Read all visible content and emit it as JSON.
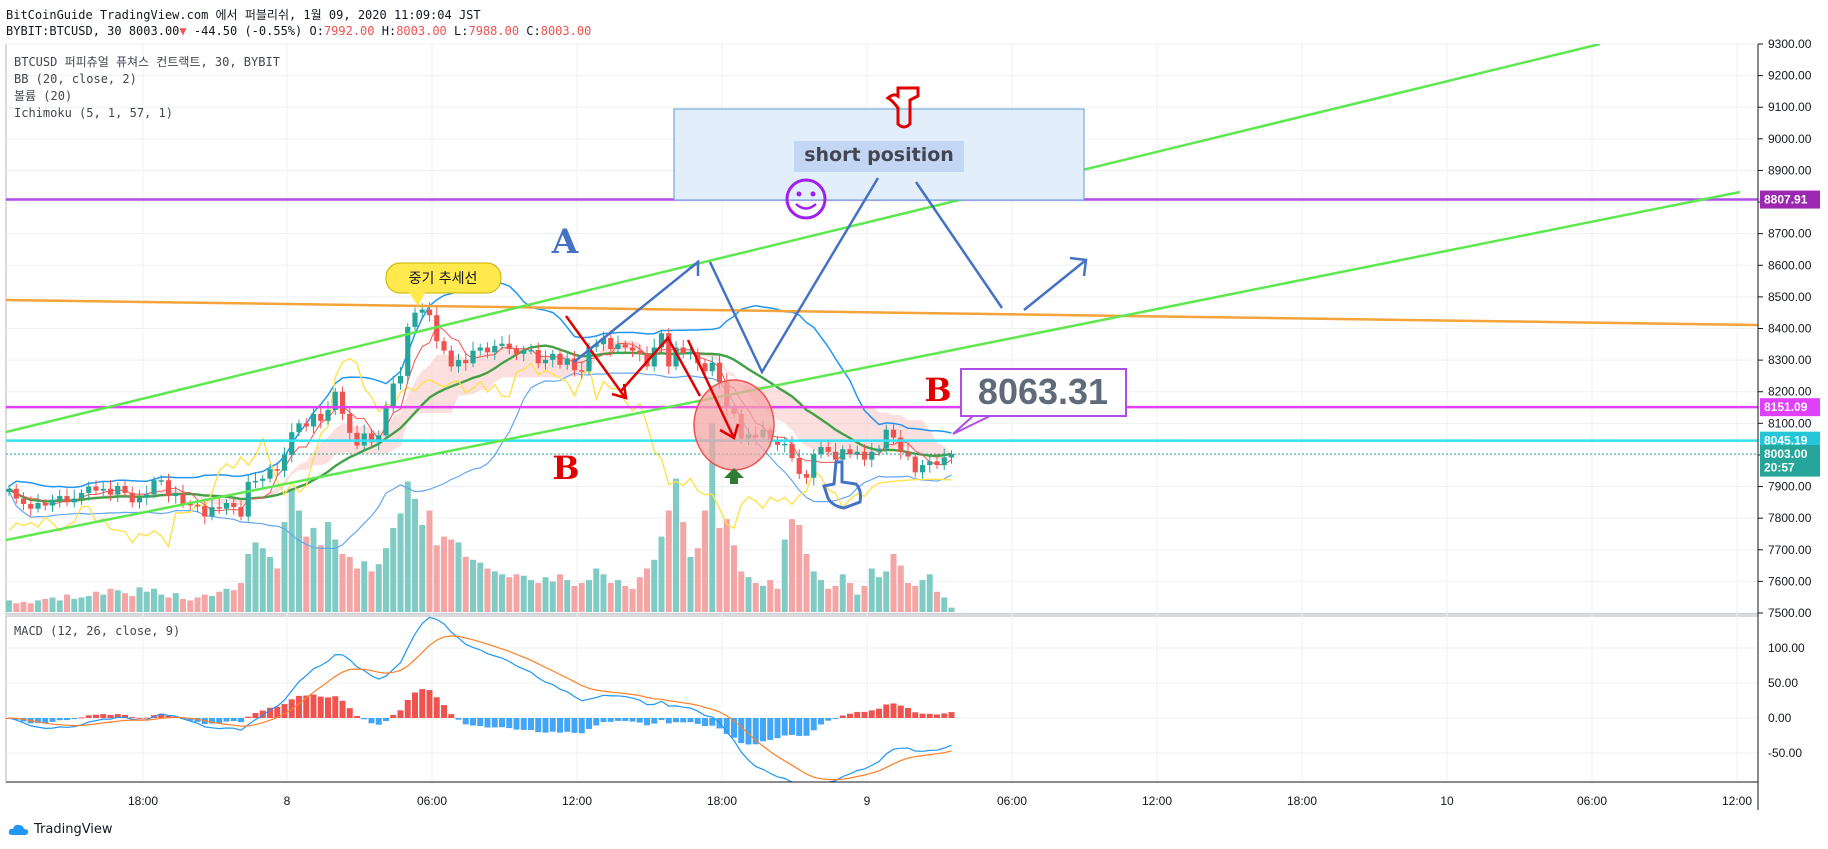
{
  "header": {
    "publish_line": "BitCoinGuide TradingView.com 에서 퍼블리쉬, 1월 09, 2020 11:09:04 JST",
    "symbol": "BYBIT:BTCUSD, 30",
    "last": "8003.00",
    "change": "-44.50 (-0.55%)",
    "o_label": "O:",
    "o_value": "7992.00",
    "h_label": "H:",
    "h_value": "8003.00",
    "l_label": "L:",
    "l_value": "7988.00",
    "c_label": "C:",
    "c_value": "8003.00"
  },
  "indicators": [
    "BTCUSD 퍼피츄얼 퓨쳐스 컨트랙트, 30, BYBIT",
    "BB (20, close, 2)",
    "볼륨 (20)",
    "Ichimoku (5, 1, 57, 1)"
  ],
  "macd_label": "MACD (12, 26, close, 9)",
  "annotations": {
    "box_text": "short position",
    "callout_text": "8063.31",
    "label_A": "A",
    "label_B_left": "B",
    "label_B_right": "B",
    "bubble_text": "중기 추세선",
    "colors": {
      "green_channel": "#5ee84f",
      "orange_line": "#f5a33a",
      "purple_line": "#b04ce8",
      "magenta_line": "#e040fb",
      "cyan_line": "#34e0f0"
    }
  },
  "price_labels": [
    {
      "text": "8807.91",
      "value": 8807.91,
      "color": "#9c27b0"
    },
    {
      "text": "8151.09",
      "value": 8151.09,
      "color": "#e040fb"
    },
    {
      "text": "8045.19",
      "value": 8045.19,
      "color": "#26c6da"
    },
    {
      "text": "8003.00",
      "value": 8003.0,
      "color": "#26a69a"
    },
    {
      "text": "20:57",
      "value": 7960,
      "color": "#26a69a"
    }
  ],
  "footer": {
    "brand": "TradingView"
  },
  "chart_data": [
    {
      "type": "candlestick",
      "title": "",
      "price_axis": {
        "ticks": [
          "9300.00",
          "9200.00",
          "9100.00",
          "9000.00",
          "8900.00",
          "8800.00",
          "8700.00",
          "8600.00",
          "8500.00",
          "8400.00",
          "8300.00",
          "8200.00",
          "8100.00",
          "8000.00",
          "7900.00",
          "7800.00",
          "7700.00",
          "7600.00",
          "7500.00"
        ],
        "ylim": [
          7500,
          9300
        ]
      },
      "time_axis": {
        "ticks": [
          "18:00",
          "8",
          "06:00",
          "12:00",
          "18:00",
          "9",
          "06:00",
          "12:00",
          "18:00",
          "10",
          "06:00",
          "12:00"
        ]
      },
      "close": [
        7893,
        7862,
        7845,
        7830,
        7848,
        7840,
        7858,
        7870,
        7850,
        7862,
        7880,
        7900,
        7887,
        7893,
        7875,
        7902,
        7880,
        7850,
        7865,
        7875,
        7920,
        7920,
        7870,
        7878,
        7845,
        7842,
        7838,
        7805,
        7835,
        7830,
        7848,
        7835,
        7805,
        7915,
        7918,
        7925,
        7955,
        7950,
        8000,
        8072,
        8100,
        8090,
        8130,
        8108,
        8142,
        8200,
        8130,
        8070,
        8030,
        8068,
        8040,
        8062,
        8150,
        8226,
        8250,
        8405,
        8450,
        8460,
        8442,
        8360,
        8330,
        8280,
        8300,
        8290,
        8330,
        8340,
        8325,
        8345,
        8352,
        8335,
        8320,
        8330,
        8332,
        8290,
        8301,
        8320,
        8285,
        8305,
        8268,
        8265,
        8342,
        8350,
        8370,
        8335,
        8350,
        8340,
        8330,
        8320,
        8280,
        8340,
        8385,
        8280,
        8340,
        8322,
        8325,
        8290,
        8265,
        8292,
        8230,
        8150,
        8130,
        8052,
        8065,
        8055,
        8080,
        8043,
        8032,
        8035,
        7990,
        7940,
        7928,
        8002,
        8025,
        8010,
        7985,
        8018,
        8002,
        8010,
        7985,
        8010,
        8020,
        8080,
        8055,
        8010,
        7995,
        7945,
        7968,
        7980,
        7968,
        7992,
        8003
      ],
      "volume": [
        8,
        6,
        7,
        6,
        8,
        9,
        10,
        8,
        12,
        9,
        10,
        11,
        14,
        12,
        16,
        15,
        13,
        11,
        17,
        14,
        16,
        12,
        10,
        13,
        9,
        8,
        10,
        12,
        11,
        14,
        16,
        15,
        20,
        40,
        48,
        44,
        38,
        30,
        62,
        85,
        70,
        52,
        58,
        46,
        62,
        50,
        40,
        38,
        30,
        35,
        28,
        33,
        44,
        58,
        68,
        90,
        78,
        60,
        70,
        46,
        52,
        50,
        48,
        38,
        36,
        34,
        30,
        28,
        26,
        24,
        26,
        25,
        22,
        20,
        24,
        21,
        26,
        22,
        18,
        20,
        22,
        30,
        26,
        20,
        22,
        18,
        16,
        24,
        30,
        36,
        52,
        70,
        92,
        62,
        38,
        44,
        70,
        130,
        58,
        64,
        46,
        28,
        24,
        20,
        18,
        22,
        16,
        50,
        64,
        60,
        40,
        28,
        22,
        16,
        18,
        26,
        20,
        12,
        18,
        30,
        24,
        28,
        40,
        32,
        20,
        18,
        22,
        26,
        14,
        10,
        3
      ],
      "bb_upper": "see script",
      "ichimoku": "cloud + lines"
    },
    {
      "type": "line",
      "title": "",
      "series": [
        {
          "values": "macd"
        },
        {
          "values": "signal"
        },
        {
          "values": "histogram"
        }
      ],
      "y_axis": {
        "ticks": [
          "100.00",
          "50.00",
          "0.00",
          "-50.00"
        ],
        "ylim": [
          -80,
          140
        ]
      }
    }
  ]
}
